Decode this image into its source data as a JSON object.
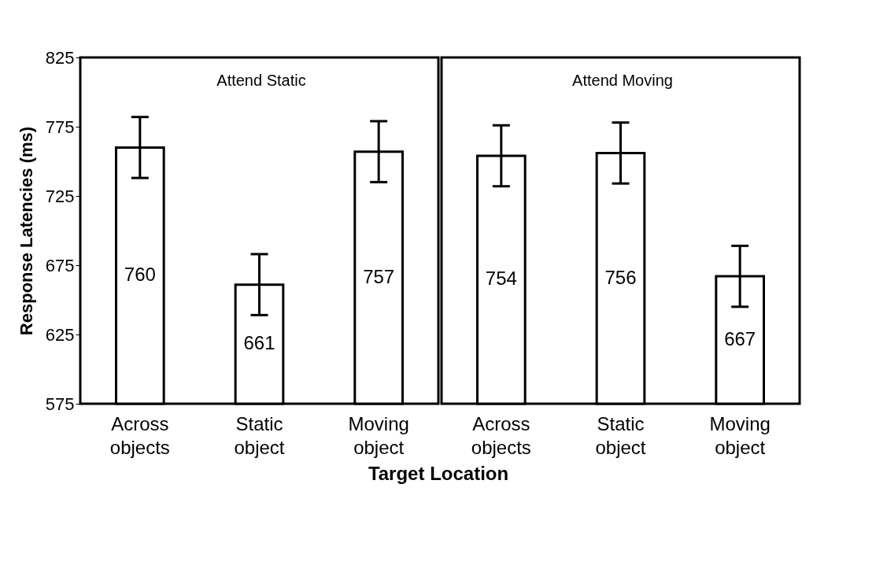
{
  "chart_data": [
    {
      "type": "bar",
      "title": "Attend Static",
      "ylabel": "Response Latencies (ms)",
      "xlabel": "Target Location",
      "categories": [
        "Across objects",
        "Static object",
        "Moving object"
      ],
      "values": [
        760,
        661,
        757
      ],
      "errors": [
        22,
        22,
        22
      ],
      "color": "#ffffff",
      "ylim": [
        575,
        825
      ],
      "yticks": [
        575,
        625,
        675,
        725,
        775,
        825
      ],
      "data_labels": true,
      "grid": false
    },
    {
      "type": "bar",
      "title": "Attend Moving",
      "categories": [
        "Across objects",
        "Static object",
        "Moving object"
      ],
      "values": [
        754,
        756,
        667
      ],
      "errors": [
        22,
        22,
        22
      ],
      "color": "#ffffff",
      "ylim": [
        575,
        825
      ],
      "yticks": [
        575,
        625,
        675,
        725,
        775,
        825
      ],
      "data_labels": true,
      "grid": false,
      "tick_labels": "x"
    }
  ]
}
